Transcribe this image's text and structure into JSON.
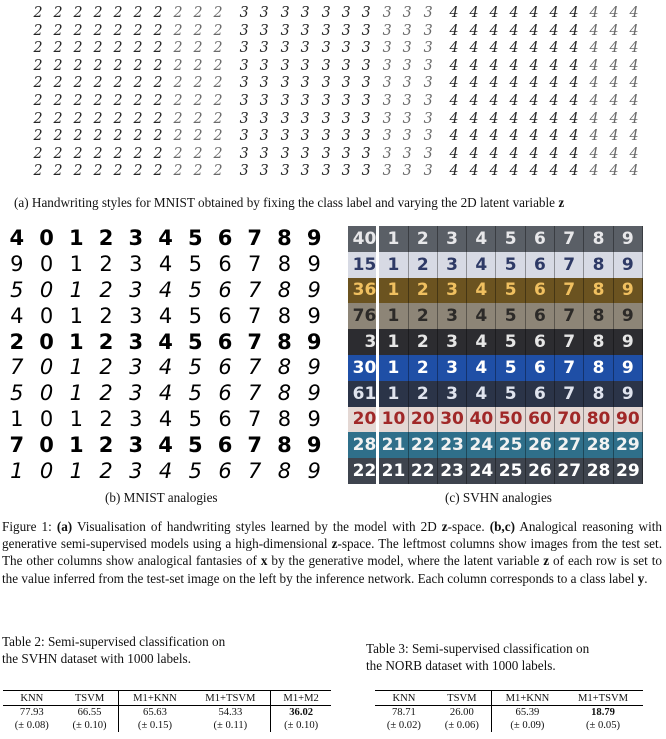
{
  "fig_a": {
    "digit_rows": [
      [
        "2",
        "3",
        "4"
      ]
    ],
    "row_count": 10,
    "col_count": 10,
    "digits": [
      "2",
      "3",
      "4"
    ],
    "caption_text": "(a) Handwriting styles for MNIST obtained by fixing the class label and varying the 2D latent variable ",
    "caption_var": "z"
  },
  "fig_b": {
    "rows": [
      [
        "4",
        "0",
        "1",
        "2",
        "3",
        "4",
        "5",
        "6",
        "7",
        "8",
        "9"
      ],
      [
        "9",
        "0",
        "1",
        "2",
        "3",
        "4",
        "5",
        "6",
        "7",
        "8",
        "9"
      ],
      [
        "5",
        "0",
        "1",
        "2",
        "3",
        "4",
        "5",
        "6",
        "7",
        "8",
        "9"
      ],
      [
        "4",
        "0",
        "1",
        "2",
        "3",
        "4",
        "5",
        "6",
        "7",
        "8",
        "9"
      ],
      [
        "2",
        "0",
        "1",
        "2",
        "3",
        "4",
        "5",
        "6",
        "7",
        "8",
        "9"
      ],
      [
        "7",
        "0",
        "1",
        "2",
        "3",
        "4",
        "5",
        "6",
        "7",
        "8",
        "9"
      ],
      [
        "5",
        "0",
        "1",
        "2",
        "3",
        "4",
        "5",
        "6",
        "7",
        "8",
        "9"
      ],
      [
        "1",
        "0",
        "1",
        "2",
        "3",
        "4",
        "5",
        "6",
        "7",
        "8",
        "9"
      ],
      [
        "7",
        "0",
        "1",
        "2",
        "3",
        "4",
        "5",
        "6",
        "7",
        "8",
        "9"
      ],
      [
        "1",
        "0",
        "1",
        "2",
        "3",
        "4",
        "5",
        "6",
        "7",
        "8",
        "9"
      ]
    ],
    "caption": "(b) MNIST analogies"
  },
  "fig_c": {
    "rows": [
      {
        "test": "40",
        "bg": "#5a5f66",
        "fg": "#e8e8ea",
        "cells": [
          "1",
          "2",
          "3",
          "4",
          "5",
          "6",
          "7",
          "8",
          "9"
        ]
      },
      {
        "test": "15",
        "bg": "#d7dae4",
        "fg": "#2e3a66",
        "cells": [
          "1",
          "2",
          "3",
          "4",
          "5",
          "6",
          "7",
          "8",
          "9"
        ]
      },
      {
        "test": "36",
        "bg": "#6b5320",
        "fg": "#f0c060",
        "cells": [
          "1",
          "2",
          "3",
          "4",
          "5",
          "6",
          "7",
          "8",
          "9"
        ]
      },
      {
        "test": "76",
        "bg": "#8d8577",
        "fg": "#2c2a28",
        "cells": [
          "1",
          "2",
          "3",
          "4",
          "5",
          "6",
          "7",
          "8",
          "9"
        ]
      },
      {
        "test": "3",
        "bg": "#2c2c30",
        "fg": "#e6e6e6",
        "cells": [
          "1",
          "2",
          "3",
          "4",
          "5",
          "6",
          "7",
          "8",
          "9"
        ]
      },
      {
        "test": "30",
        "bg": "#1f4fa6",
        "fg": "#ffffff",
        "cells": [
          "1",
          "2",
          "3",
          "4",
          "5",
          "6",
          "7",
          "8",
          "9"
        ]
      },
      {
        "test": "61",
        "bg": "#2b3448",
        "fg": "#e0e4ee",
        "cells": [
          "1",
          "2",
          "3",
          "4",
          "5",
          "6",
          "7",
          "8",
          "9"
        ]
      },
      {
        "test": "20",
        "bg": "#e4d8d4",
        "fg": "#a02828",
        "cells": [
          "10",
          "20",
          "30",
          "40",
          "50",
          "60",
          "70",
          "80",
          "90"
        ]
      },
      {
        "test": "28",
        "bg": "#2f6f8a",
        "fg": "#f2f2f2",
        "cells": [
          "21",
          "22",
          "23",
          "24",
          "25",
          "26",
          "27",
          "28",
          "29"
        ]
      },
      {
        "test": "22",
        "bg": "#3e444e",
        "fg": "#ffffff",
        "cells": [
          "21",
          "22",
          "23",
          "24",
          "25",
          "26",
          "27",
          "28",
          "29"
        ]
      }
    ],
    "caption": "(c) SVHN analogies"
  },
  "figure_caption": {
    "label": "Figure 1: ",
    "part_a": "(a)",
    "text1": " Visualisation of handwriting styles learned by the model with 2D ",
    "z1": "z",
    "text2": "-space.  ",
    "part_bc": "(b,c)",
    "text3": " Analogical reasoning with generative semi-supervised models using a high-dimensional ",
    "z2": "z",
    "text4": "-space. The leftmost columns show images from the test set. The other columns show analogical fantasies of ",
    "x": "x",
    "text5": " by the generative model, where the latent variable ",
    "z3": "z",
    "text6": " of each row is set to the value inferred from the test-set image on the left by the inference network. Each column corresponds to a class label ",
    "y": "y",
    "text7": "."
  },
  "table2": {
    "caption_line1": "Table 2:  Semi-supervised classification on",
    "caption_line2": "the SVHN dataset with 1000 labels.",
    "headers": [
      "KNN",
      "TSVM",
      "M1+KNN",
      "M1+TSVM",
      "M1+M2"
    ],
    "values": [
      "77.93",
      "66.55",
      "65.63",
      "54.33",
      "36.02"
    ],
    "errors": [
      "(± 0.08)",
      "(± 0.10)",
      "(± 0.15)",
      "(± 0.11)",
      "(± 0.10)"
    ]
  },
  "table3": {
    "caption_line1": "Table 3:  Semi-supervised classification on",
    "caption_line2": "the NORB dataset with 1000 labels.",
    "headers": [
      "KNN",
      "TSVM",
      "M1+KNN",
      "M1+TSVM"
    ],
    "values": [
      "78.71",
      "26.00",
      "65.39",
      "18.79"
    ],
    "errors": [
      "(± 0.02)",
      "(± 0.06)",
      "(± 0.09)",
      "(± 0.05)"
    ]
  }
}
